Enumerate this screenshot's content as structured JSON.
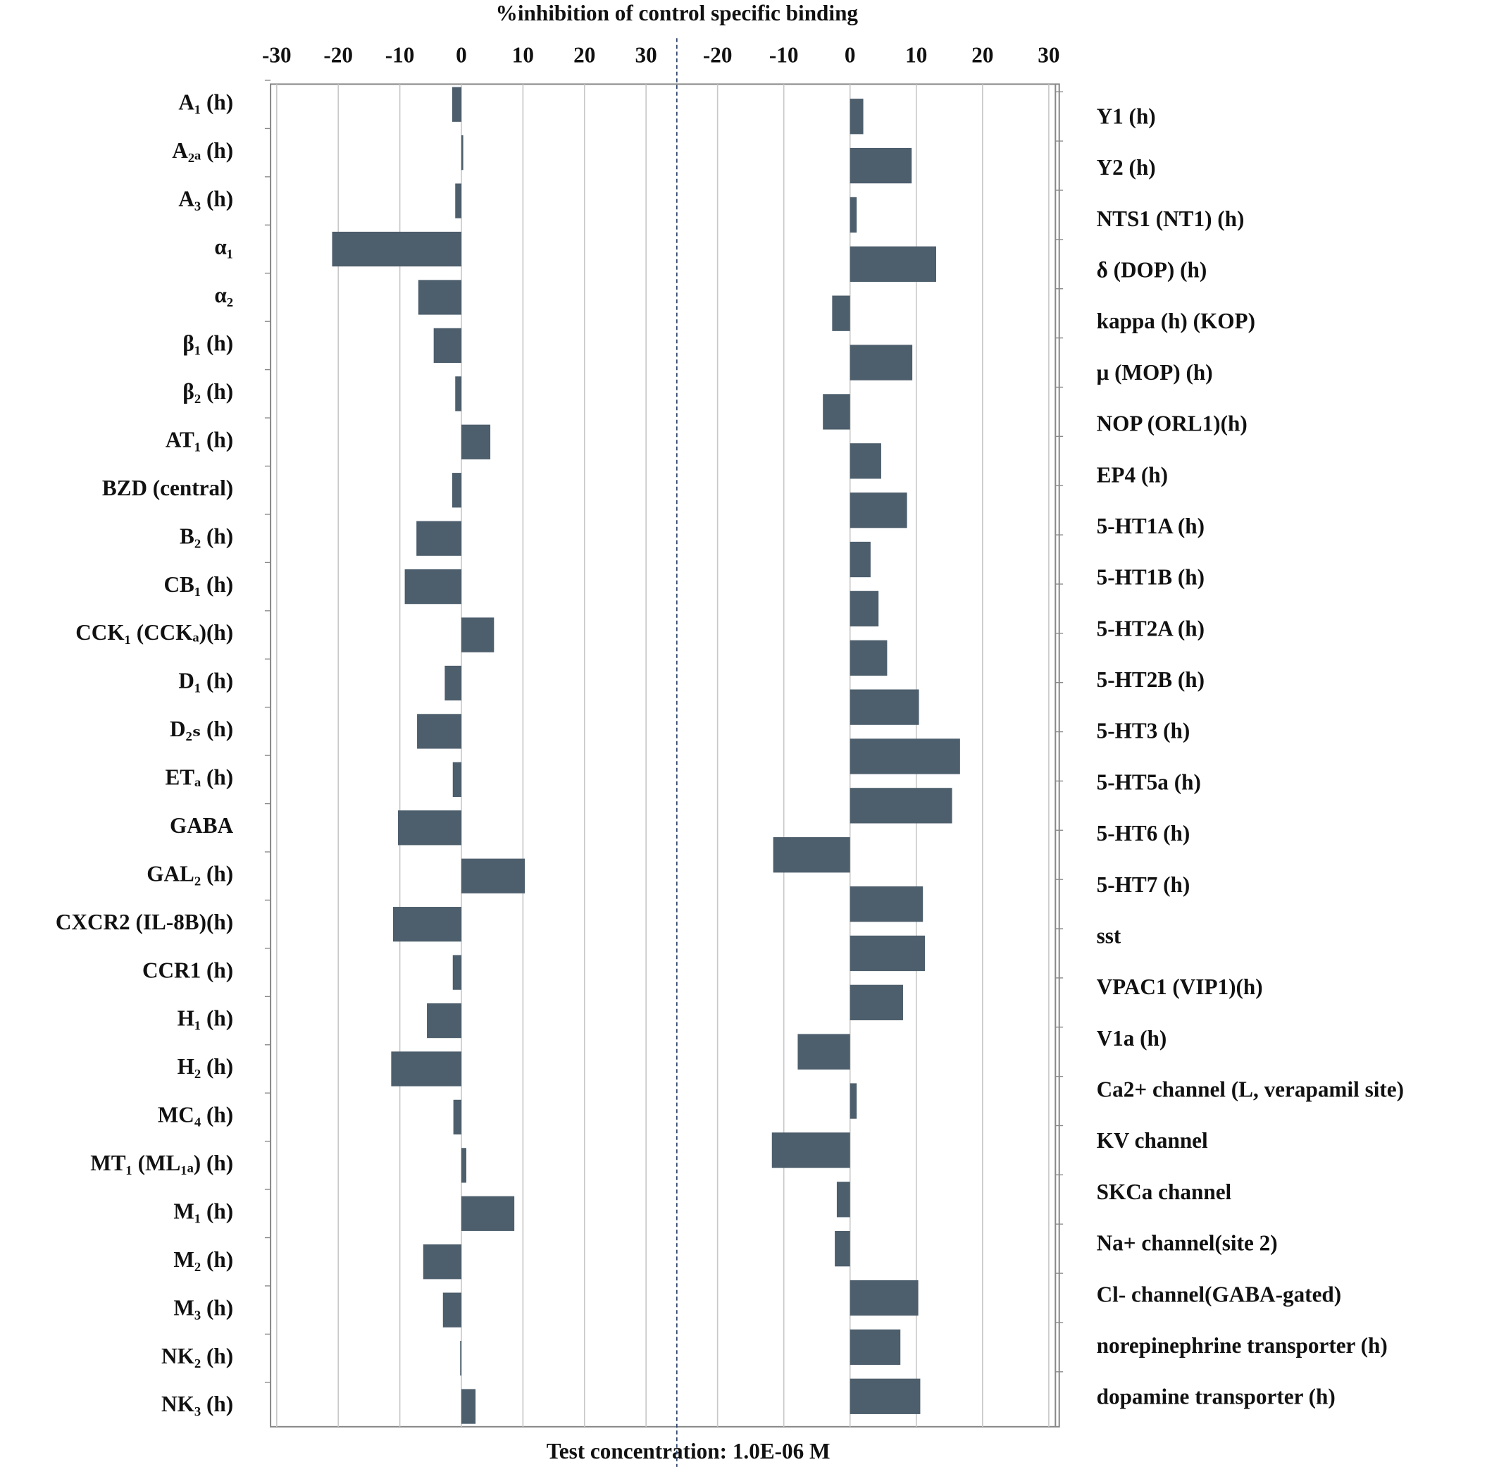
{
  "title": "%inhibition of control specific binding",
  "footer": "Test concentration:  1.0E-06 M",
  "chart_data": [
    {
      "type": "bar",
      "orientation": "horizontal",
      "color": "#4d5e6c",
      "grid": true,
      "categories": [
        "A₁ (h)",
        "A₂ₐ (h)",
        "A₃ (h)",
        "α₁",
        "α₂",
        "β₁ (h)",
        "β₂ (h)",
        "AT₁ (h)",
        "BZD (central)",
        "B₂ (h)",
        "CB₁ (h)",
        "CCK₁ (CCKₐ)(h)",
        "D₁ (h)",
        "D₂ₛ (h)",
        "ETₐ (h)",
        "GABA",
        "GAL₂ (h)",
        "CXCR2 (IL-8B)(h)",
        "CCR1 (h)",
        "H₁ (h)",
        "H₂ (h)",
        "MC₄ (h)",
        "MT₁ (ML₁ₐ) (h)",
        "M₁ (h)",
        "M₂ (h)",
        "M₃ (h)",
        "NK₂ (h)",
        "NK₃ (h)"
      ],
      "values": [
        -1.5,
        0.3,
        -1,
        -21,
        -7,
        -4.5,
        -1,
        4.7,
        -1.5,
        -7.3,
        -9.2,
        5.3,
        -2.7,
        -7.2,
        -1.4,
        -10.3,
        10.3,
        -11.1,
        -1.4,
        -5.6,
        -11.4,
        -1.3,
        0.8,
        8.6,
        -6.2,
        -3,
        -0.2,
        2.3
      ],
      "xlim": [
        -31,
        35
      ],
      "xticks": [
        -30,
        -20,
        -10,
        0,
        10,
        20,
        30
      ]
    },
    {
      "type": "bar",
      "orientation": "horizontal",
      "color": "#4d5e6c",
      "grid": true,
      "categories": [
        "Y1 (h)",
        "Y2 (h)",
        "NTS1 (NT1) (h)",
        "δ (DOP) (h)",
        "kappa (h) (KOP)",
        "μ (MOP) (h)",
        "NOP (ORL1)(h)",
        "EP4 (h)",
        "5-HT1A (h)",
        "5-HT1B (h)",
        "5-HT2A (h)",
        "5-HT2B (h)",
        "5-HT3 (h)",
        "5-HT5a (h)",
        "5-HT6 (h)",
        "5-HT7 (h)",
        "sst",
        "VPAC1 (VIP1)(h)",
        "V1a (h)",
        "Ca2+ channel (L, verapamil site)",
        "KV channel",
        "SKCa channel",
        "Na+ channel(site 2)",
        "Cl- channel(GABA-gated)",
        "norepinephrine transporter (h)",
        "dopamine transporter (h)",
        null
      ],
      "values": [
        2,
        9.3,
        1,
        13,
        -2.7,
        9.4,
        -4.1,
        4.7,
        8.6,
        3.1,
        4.3,
        5.6,
        10.4,
        16.6,
        15.4,
        -11.6,
        11,
        11.3,
        8,
        -7.9,
        1,
        -11.8,
        -2,
        -2.3,
        10.3,
        7.6,
        10.6
      ],
      "xlim": [
        -26,
        31
      ],
      "xticks": [
        -20,
        -10,
        0,
        10,
        20,
        30
      ]
    }
  ]
}
